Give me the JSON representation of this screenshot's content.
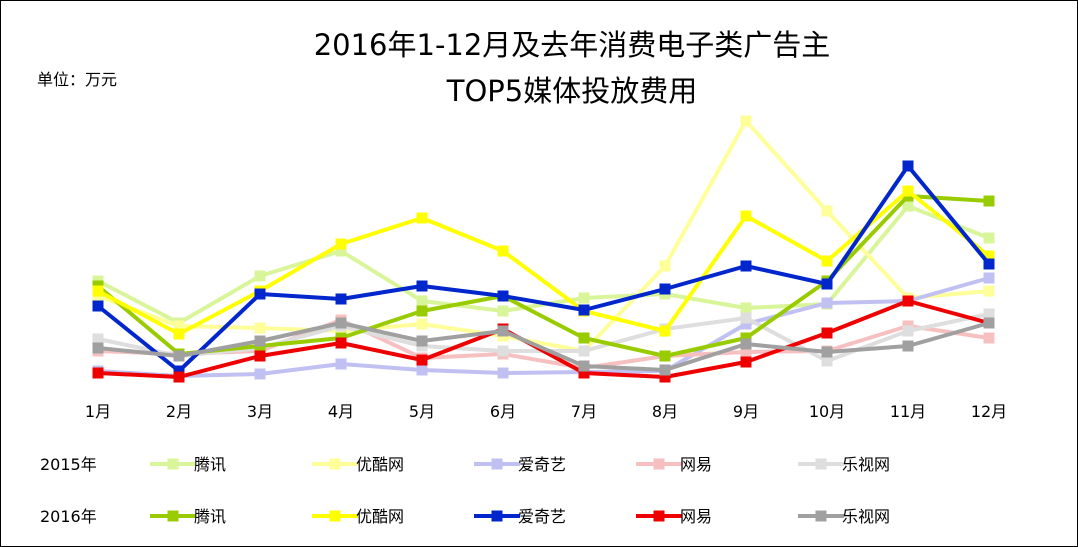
{
  "title_line1": "2016年1-12月及去年消费电子类广告主",
  "title_line2": "TOP5媒体投放费用",
  "unit_label": "单位：万元",
  "chart_data": {
    "type": "line",
    "categories": [
      "1月",
      "2月",
      "3月",
      "4月",
      "5月",
      "6月",
      "7月",
      "8月",
      "9月",
      "10月",
      "11月",
      "12月"
    ],
    "ylim": [
      0,
      280
    ],
    "grid": false,
    "legend_placement": "bottom",
    "legend_rows": [
      "2015年",
      "2016年"
    ],
    "series": [
      {
        "name": "腾讯",
        "year": "2015年",
        "color": "#d9f59a",
        "values": [
          95,
          53,
          100,
          125,
          75,
          65,
          78,
          82,
          68,
          72,
          170,
          138
        ]
      },
      {
        "name": "优酷网",
        "year": "2015年",
        "color": "#ffff99",
        "values": [
          80,
          50,
          48,
          45,
          52,
          40,
          25,
          110,
          255,
          165,
          78,
          85
        ]
      },
      {
        "name": "爱奇艺",
        "year": "2015年",
        "color": "#c0c0f2",
        "values": [
          5,
          0,
          2,
          12,
          6,
          3,
          4,
          5,
          52,
          73,
          75,
          98
        ]
      },
      {
        "name": "网易",
        "year": "2015年",
        "color": "#f7c0c0",
        "values": [
          25,
          22,
          25,
          56,
          18,
          22,
          8,
          20,
          24,
          25,
          50,
          38
        ]
      },
      {
        "name": "乐视网",
        "year": "2015年",
        "color": "#dedede",
        "values": [
          37,
          20,
          28,
          50,
          30,
          25,
          25,
          47,
          58,
          15,
          45,
          62
        ]
      },
      {
        "name": "腾讯",
        "year": "2016年",
        "color": "#99cc00",
        "values": [
          90,
          22,
          30,
          38,
          65,
          80,
          38,
          20,
          38,
          95,
          180,
          175
        ]
      },
      {
        "name": "优酷网",
        "year": "2016年",
        "color": "#ffff00",
        "values": [
          85,
          42,
          85,
          132,
          158,
          125,
          65,
          45,
          160,
          115,
          185,
          120
        ]
      },
      {
        "name": "爱奇艺",
        "year": "2016年",
        "color": "#0026cc",
        "values": [
          70,
          5,
          82,
          77,
          90,
          80,
          66,
          87,
          110,
          92,
          210,
          112
        ]
      },
      {
        "name": "网易",
        "year": "2016年",
        "color": "#ee0000",
        "values": [
          3,
          -1,
          20,
          33,
          16,
          47,
          3,
          -1,
          14,
          43,
          75,
          53
        ]
      },
      {
        "name": "乐视网",
        "year": "2016年",
        "color": "#a0a0a0",
        "values": [
          28,
          20,
          35,
          53,
          35,
          45,
          10,
          6,
          32,
          24,
          30,
          53
        ]
      }
    ]
  }
}
